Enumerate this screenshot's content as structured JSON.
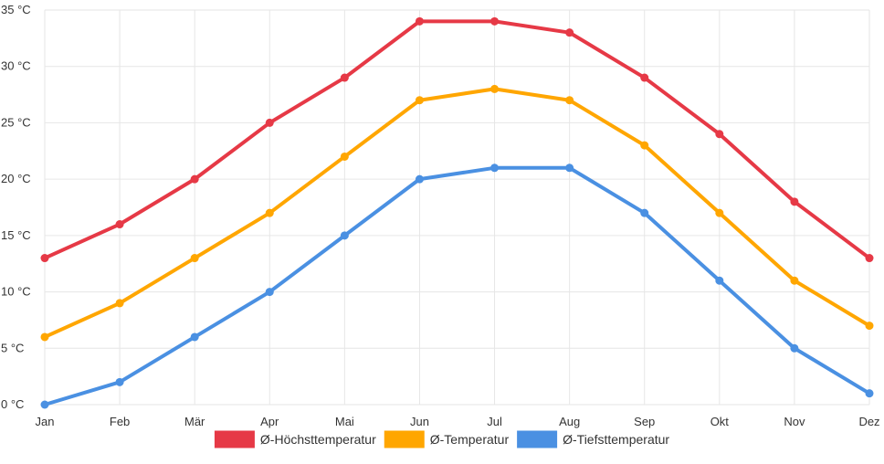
{
  "chart_data": {
    "type": "line",
    "categories": [
      "Jan",
      "Feb",
      "Mär",
      "Apr",
      "Mai",
      "Jun",
      "Jul",
      "Aug",
      "Sep",
      "Okt",
      "Nov",
      "Dez"
    ],
    "ylim": [
      0,
      35
    ],
    "yticks": [
      0,
      5,
      10,
      15,
      20,
      25,
      30,
      35
    ],
    "y_unit": "°C",
    "grid": true,
    "legend_position": "bottom",
    "series": [
      {
        "name": "Ø-Höchsttemperatur",
        "color": "#e63946",
        "values": [
          13,
          16,
          20,
          25,
          29,
          34,
          34,
          33,
          29,
          24,
          18,
          13
        ]
      },
      {
        "name": "Ø-Temperatur",
        "color": "#ffa600",
        "values": [
          6,
          9,
          13,
          17,
          22,
          27,
          28,
          27,
          23,
          17,
          11,
          7
        ]
      },
      {
        "name": "Ø-Tiefsttemperatur",
        "color": "#4a90e2",
        "values": [
          0,
          2,
          6,
          10,
          15,
          20,
          21,
          21,
          17,
          11,
          5,
          1
        ]
      }
    ]
  }
}
